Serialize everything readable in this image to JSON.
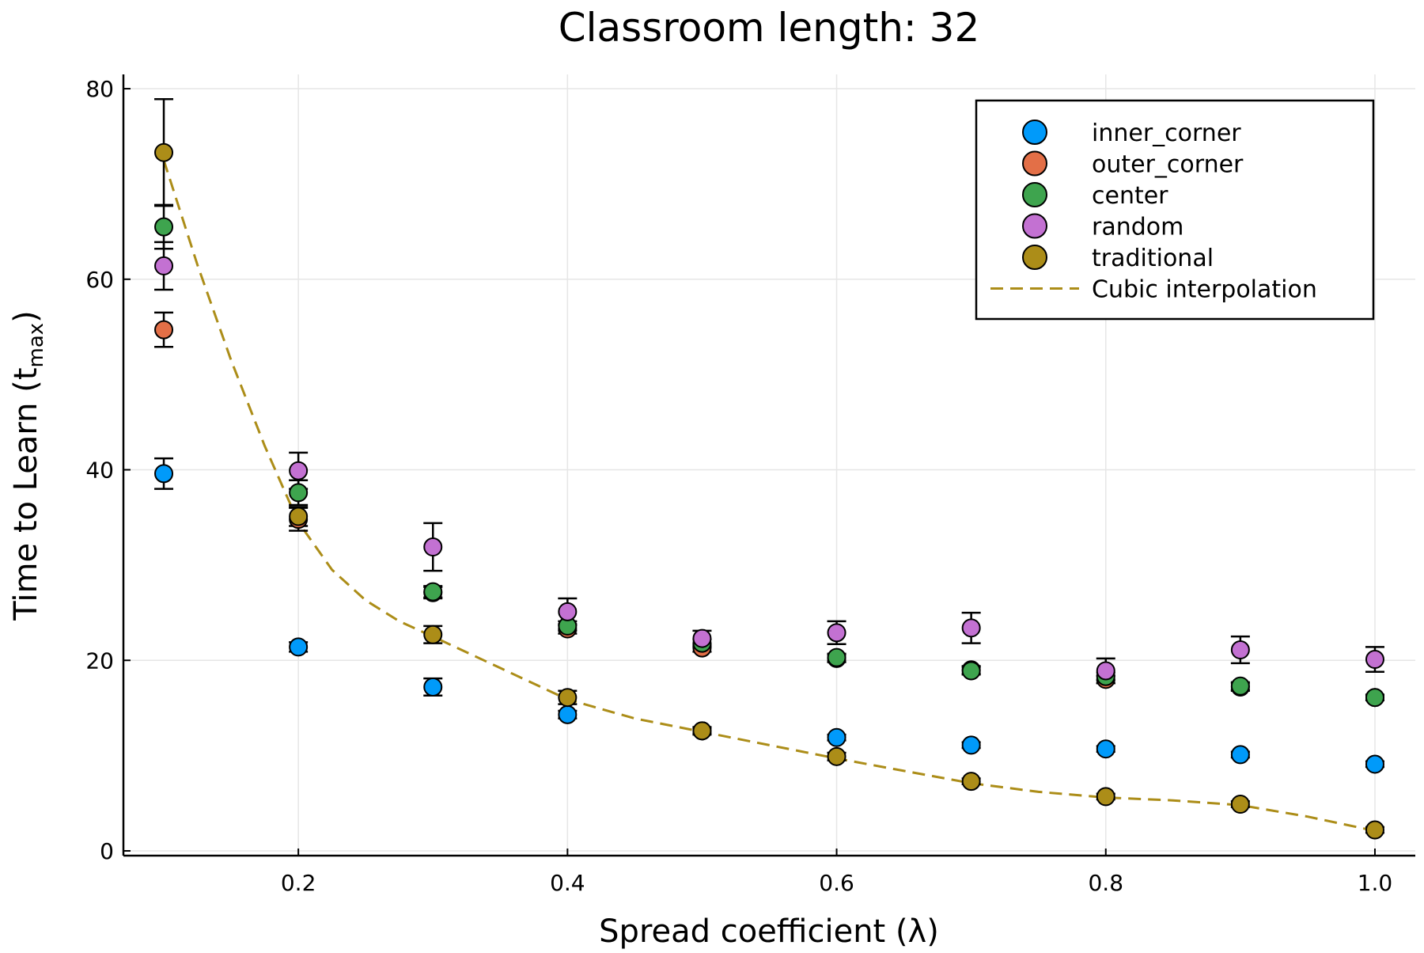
{
  "chart_data": {
    "type": "scatter",
    "title": "Classroom length: 32",
    "xlabel": "Spread coefficient (λ)",
    "ylabel": {
      "main": "Time to Learn (t",
      "subscript": "max",
      "close": ")"
    },
    "xlim": [
      0.07,
      1.03
    ],
    "ylim": [
      -0.5,
      81.5
    ],
    "xticks": [
      0.2,
      0.4,
      0.6,
      0.8,
      1.0
    ],
    "xtick_labels": [
      "0.2",
      "0.4",
      "0.6",
      "0.8",
      "1.0"
    ],
    "yticks": [
      0,
      20,
      40,
      60,
      80
    ],
    "ytick_labels": [
      "0",
      "20",
      "40",
      "60",
      "80"
    ],
    "grid": true,
    "legend_position": "top-right",
    "x": [
      0.1,
      0.2,
      0.3,
      0.4,
      0.5,
      0.6,
      0.7,
      0.8,
      0.9,
      1.0
    ],
    "series": [
      {
        "name": "inner_corner",
        "color": "#009AFA",
        "y": [
          39.6,
          21.4,
          17.2,
          14.3,
          12.6,
          11.9,
          11.1,
          10.7,
          10.1,
          9.1
        ],
        "err": [
          1.6,
          0.5,
          0.9,
          0.4,
          0.3,
          0.3,
          0.3,
          0.3,
          0.3,
          0.3
        ]
      },
      {
        "name": "outer_corner",
        "color": "#E36F47",
        "y": [
          54.7,
          34.8,
          27.1,
          23.3,
          21.3,
          20.2,
          19.0,
          18.0,
          17.2,
          16.1
        ],
        "err": [
          1.8,
          1.2,
          0.6,
          0.5,
          0.4,
          0.4,
          0.4,
          0.4,
          0.4,
          0.3
        ]
      },
      {
        "name": "center",
        "color": "#3EA44E",
        "y": [
          65.5,
          37.6,
          27.2,
          23.6,
          21.8,
          20.3,
          18.9,
          18.3,
          17.3,
          16.1
        ],
        "err": [
          2.3,
          1.3,
          0.6,
          0.5,
          0.4,
          0.4,
          0.4,
          0.4,
          0.4,
          0.3
        ]
      },
      {
        "name": "random",
        "color": "#C371D2",
        "y": [
          61.4,
          39.9,
          31.9,
          25.1,
          22.3,
          22.9,
          23.4,
          18.9,
          21.1,
          20.1
        ],
        "err": [
          2.5,
          1.9,
          2.5,
          1.4,
          0.8,
          1.2,
          1.6,
          1.3,
          1.4,
          1.3
        ]
      },
      {
        "name": "traditional",
        "color": "#AC8D18",
        "y": [
          73.3,
          35.1,
          22.7,
          16.1,
          12.6,
          9.9,
          7.3,
          5.7,
          4.9,
          2.2
        ],
        "err": [
          5.6,
          1.0,
          0.9,
          0.7,
          0.4,
          0.4,
          0.3,
          0.3,
          0.3,
          0.3
        ]
      }
    ],
    "fit": {
      "name": "Cubic interpolation",
      "color": "#AC8D18",
      "style": "dashed",
      "x": [
        0.1,
        0.125,
        0.15,
        0.175,
        0.2,
        0.225,
        0.25,
        0.275,
        0.3,
        0.35,
        0.4,
        0.45,
        0.5,
        0.55,
        0.6,
        0.65,
        0.7,
        0.75,
        0.8,
        0.85,
        0.9,
        0.95,
        1.0
      ],
      "y": [
        72.5,
        61.5,
        51.5,
        42.5,
        34.5,
        29.5,
        26.3,
        24.1,
        22.5,
        19.2,
        15.9,
        13.9,
        12.5,
        11.1,
        9.7,
        8.4,
        7.1,
        6.2,
        5.6,
        5.3,
        4.8,
        3.6,
        2.1
      ]
    }
  }
}
